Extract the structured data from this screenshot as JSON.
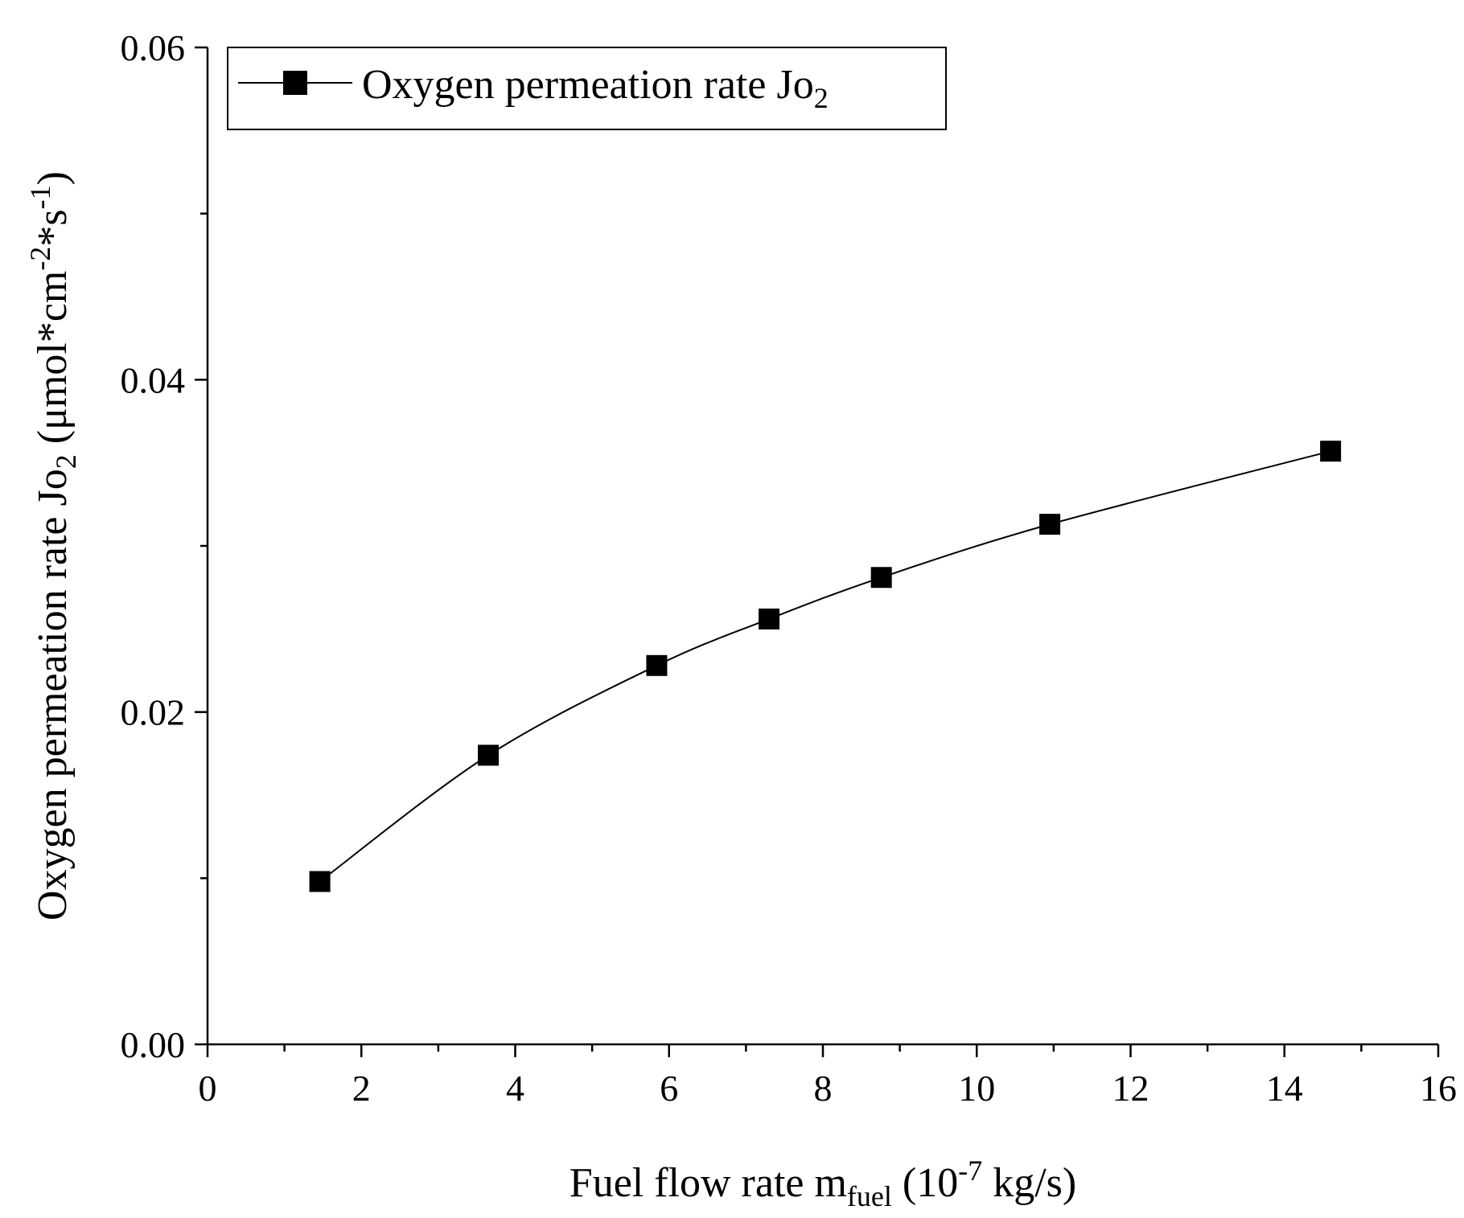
{
  "chart_data": {
    "type": "line",
    "title": "",
    "xlabel": {
      "main": "Fuel flow rate m",
      "sub": "fuel",
      "unit_open": " (10",
      "unit_sup": "-7",
      "unit_close": " kg/s)"
    },
    "ylabel": {
      "main": "Oxygen permeation rate Jo",
      "sub": "2",
      "unit_open": " (μmol*cm",
      "unit_sup1": "-2",
      "unit_mid": "*s",
      "unit_sup2": "-1",
      "unit_close": ")"
    },
    "xlim": [
      0,
      16
    ],
    "ylim": [
      0,
      0.06
    ],
    "x_ticks": [
      "0",
      "2",
      "4",
      "6",
      "8",
      "10",
      "12",
      "14",
      "16"
    ],
    "y_ticks": [
      "0.00",
      "0.02",
      "0.04",
      "0.06"
    ],
    "x_tick_values": [
      0,
      2,
      4,
      6,
      8,
      10,
      12,
      14,
      16
    ],
    "y_tick_values": [
      0,
      0.02,
      0.04,
      0.06
    ],
    "grid": false,
    "legend_position": "top-left",
    "series": [
      {
        "name": "Oxygen permeation rate Jo",
        "name_sub": "2",
        "marker": "square",
        "color": "#000000",
        "x": [
          1.46,
          3.65,
          5.84,
          7.3,
          8.76,
          10.95,
          14.6
        ],
        "y": [
          0.0098,
          0.0174,
          0.0228,
          0.0256,
          0.0281,
          0.0313,
          0.0357
        ]
      }
    ]
  }
}
